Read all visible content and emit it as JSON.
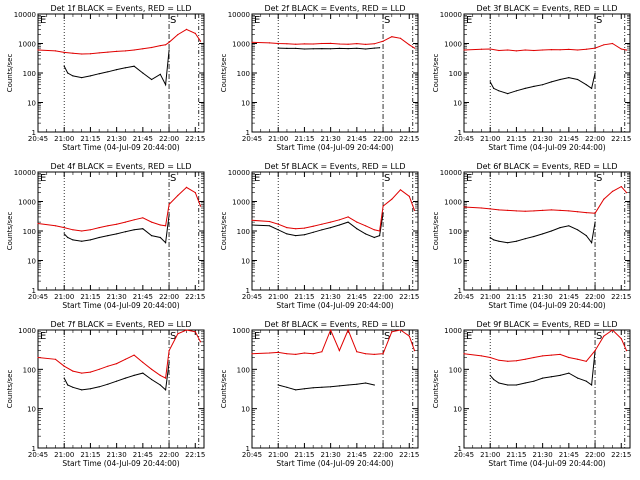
{
  "figure": {
    "xlabel": "Start Time (04-Jul-09 20:44:00)",
    "ylabel": "Counts/sec",
    "x_tick_labels": [
      "20:45",
      "21:00",
      "21:15",
      "21:30",
      "21:45",
      "22:00",
      "22:15"
    ],
    "y_tick_labels": [
      "1",
      "10",
      "100",
      "1000",
      "10000"
    ],
    "marker_labels": [
      "E",
      "S"
    ]
  },
  "colors": {
    "events": "#000000",
    "lld": "#e00000",
    "axis": "#000000"
  },
  "chart_data": [
    {
      "type": "line",
      "title": "Det 1f BLACK = Events, RED = LLD",
      "x_range": [
        "20:45",
        "22:20"
      ],
      "y_scale": "log",
      "ylim": [
        1,
        10000
      ],
      "markers": {
        "E": "20:45",
        "S": "22:00"
      },
      "series": [
        {
          "name": "Events",
          "color": "#000000",
          "x": [
            "21:00",
            "21:02",
            "21:05",
            "21:10",
            "21:15",
            "21:20",
            "21:25",
            "21:30",
            "21:35",
            "21:40",
            "21:45",
            "21:50",
            "21:55",
            "21:58",
            "22:00"
          ],
          "y": [
            170,
            100,
            80,
            70,
            80,
            95,
            110,
            130,
            150,
            170,
            100,
            60,
            90,
            40,
            600
          ]
        },
        {
          "name": "LLD",
          "color": "#e00000",
          "x": [
            "20:45",
            "20:55",
            "21:00",
            "21:05",
            "21:10",
            "21:15",
            "21:20",
            "21:25",
            "21:30",
            "21:35",
            "21:40",
            "21:45",
            "21:50",
            "21:55",
            "21:58",
            "22:00",
            "22:05",
            "22:10",
            "22:15",
            "22:18"
          ],
          "y": [
            600,
            560,
            500,
            470,
            440,
            450,
            480,
            510,
            540,
            560,
            600,
            660,
            730,
            850,
            900,
            1100,
            2000,
            3000,
            2200,
            1200
          ]
        }
      ]
    },
    {
      "type": "line",
      "title": "Det 2f BLACK = Events, RED = LLD",
      "x_range": [
        "20:45",
        "22:20"
      ],
      "y_scale": "log",
      "ylim": [
        1,
        10000
      ],
      "markers": {
        "E": "20:45",
        "S": "22:00"
      },
      "series": [
        {
          "name": "Events",
          "color": "#000000",
          "x": [
            "21:00",
            "21:05",
            "21:10",
            "21:15",
            "21:20",
            "21:25",
            "21:30",
            "21:35",
            "21:40",
            "21:45",
            "21:50",
            "21:55",
            "21:58"
          ],
          "y": [
            700,
            680,
            680,
            650,
            660,
            670,
            660,
            680,
            670,
            690,
            650,
            700,
            720
          ]
        },
        {
          "name": "LLD",
          "color": "#e00000",
          "x": [
            "20:45",
            "20:55",
            "21:00",
            "21:05",
            "21:10",
            "21:15",
            "21:20",
            "21:25",
            "21:30",
            "21:35",
            "21:40",
            "21:45",
            "21:50",
            "21:55",
            "22:00",
            "22:05",
            "22:10",
            "22:15",
            "22:18"
          ],
          "y": [
            1100,
            1050,
            1000,
            980,
            950,
            970,
            960,
            1000,
            1010,
            960,
            950,
            990,
            930,
            980,
            1200,
            1700,
            1500,
            900,
            700
          ]
        }
      ]
    },
    {
      "type": "line",
      "title": "Det 3f BLACK = Events, RED = LLD",
      "x_range": [
        "20:45",
        "22:20"
      ],
      "y_scale": "log",
      "ylim": [
        1,
        10000
      ],
      "markers": {
        "E": "20:45",
        "S": "22:00"
      },
      "series": [
        {
          "name": "Events",
          "color": "#000000",
          "x": [
            "21:00",
            "21:02",
            "21:05",
            "21:10",
            "21:15",
            "21:20",
            "21:25",
            "21:30",
            "21:35",
            "21:40",
            "21:45",
            "21:50",
            "21:55",
            "21:58",
            "22:00"
          ],
          "y": [
            50,
            30,
            25,
            20,
            25,
            30,
            35,
            40,
            50,
            60,
            70,
            60,
            40,
            30,
            100
          ]
        },
        {
          "name": "LLD",
          "color": "#e00000",
          "x": [
            "20:45",
            "20:55",
            "21:00",
            "21:05",
            "21:10",
            "21:15",
            "21:20",
            "21:25",
            "21:30",
            "21:35",
            "21:40",
            "21:45",
            "21:50",
            "21:55",
            "22:00",
            "22:05",
            "22:10",
            "22:15",
            "22:18"
          ],
          "y": [
            600,
            640,
            650,
            580,
            600,
            560,
            600,
            580,
            600,
            620,
            610,
            630,
            600,
            640,
            700,
            900,
            1000,
            650,
            600
          ]
        }
      ]
    },
    {
      "type": "line",
      "title": "Det 4f BLACK = Events, RED = LLD",
      "x_range": [
        "20:45",
        "22:20"
      ],
      "y_scale": "log",
      "ylim": [
        1,
        10000
      ],
      "markers": {
        "E": "20:45",
        "S": "22:00"
      },
      "series": [
        {
          "name": "Events",
          "color": "#000000",
          "x": [
            "21:00",
            "21:02",
            "21:05",
            "21:10",
            "21:15",
            "21:20",
            "21:25",
            "21:30",
            "21:35",
            "21:40",
            "21:45",
            "21:50",
            "21:55",
            "21:58",
            "22:00"
          ],
          "y": [
            80,
            60,
            50,
            45,
            50,
            60,
            70,
            80,
            95,
            110,
            120,
            70,
            60,
            40,
            350
          ]
        },
        {
          "name": "LLD",
          "color": "#e00000",
          "x": [
            "20:45",
            "20:55",
            "21:00",
            "21:05",
            "21:10",
            "21:15",
            "21:20",
            "21:25",
            "21:30",
            "21:35",
            "21:40",
            "21:45",
            "21:50",
            "21:55",
            "21:58",
            "22:00",
            "22:05",
            "22:10",
            "22:15",
            "22:18"
          ],
          "y": [
            180,
            150,
            130,
            110,
            100,
            110,
            130,
            150,
            170,
            200,
            240,
            280,
            200,
            160,
            150,
            800,
            1600,
            3000,
            2000,
            700
          ]
        }
      ]
    },
    {
      "type": "line",
      "title": "Det 5f BLACK = Events, RED = LLD",
      "x_range": [
        "20:45",
        "22:20"
      ],
      "y_scale": "log",
      "ylim": [
        1,
        10000
      ],
      "markers": {
        "E": "20:45",
        "S": "22:00"
      },
      "series": [
        {
          "name": "Events",
          "color": "#000000",
          "x": [
            "20:45",
            "20:55",
            "21:00",
            "21:05",
            "21:10",
            "21:15",
            "21:20",
            "21:25",
            "21:30",
            "21:35",
            "21:40",
            "21:45",
            "21:50",
            "21:55",
            "21:58",
            "22:00"
          ],
          "y": [
            160,
            150,
            110,
            80,
            70,
            75,
            90,
            110,
            130,
            160,
            200,
            120,
            80,
            60,
            70,
            400
          ]
        },
        {
          "name": "LLD",
          "color": "#e00000",
          "x": [
            "20:45",
            "20:55",
            "21:00",
            "21:05",
            "21:10",
            "21:15",
            "21:20",
            "21:25",
            "21:30",
            "21:35",
            "21:40",
            "21:45",
            "21:50",
            "21:55",
            "21:58",
            "22:00",
            "22:05",
            "22:10",
            "22:15",
            "22:18"
          ],
          "y": [
            230,
            210,
            170,
            130,
            120,
            125,
            145,
            170,
            200,
            240,
            300,
            200,
            150,
            110,
            100,
            700,
            1200,
            2500,
            1500,
            500
          ]
        }
      ]
    },
    {
      "type": "line",
      "title": "Det 6f BLACK = Events, RED = LLD",
      "x_range": [
        "20:45",
        "22:20"
      ],
      "y_scale": "log",
      "ylim": [
        1,
        10000
      ],
      "markers": {
        "E": "20:45",
        "S": "22:00"
      },
      "series": [
        {
          "name": "Events",
          "color": "#000000",
          "x": [
            "21:00",
            "21:02",
            "21:05",
            "21:10",
            "21:15",
            "21:20",
            "21:25",
            "21:30",
            "21:35",
            "21:40",
            "21:45",
            "21:50",
            "21:55",
            "21:58",
            "22:00"
          ],
          "y": [
            60,
            50,
            45,
            40,
            45,
            55,
            65,
            80,
            100,
            130,
            150,
            110,
            70,
            40,
            200
          ]
        },
        {
          "name": "LLD",
          "color": "#e00000",
          "x": [
            "20:45",
            "20:55",
            "21:00",
            "21:05",
            "21:10",
            "21:15",
            "21:20",
            "21:25",
            "21:30",
            "21:35",
            "21:40",
            "21:45",
            "21:50",
            "21:55",
            "22:00",
            "22:05",
            "22:10",
            "22:15",
            "22:18"
          ],
          "y": [
            650,
            600,
            560,
            520,
            500,
            480,
            470,
            480,
            500,
            520,
            500,
            480,
            450,
            420,
            400,
            1200,
            2200,
            3200,
            2000
          ]
        }
      ]
    },
    {
      "type": "line",
      "title": "Det 7f BLACK = Events, RED = LLD",
      "x_range": [
        "20:45",
        "22:20"
      ],
      "y_scale": "log",
      "ylim": [
        1,
        1000
      ],
      "markers": {
        "E": "20:45",
        "S": "22:00"
      },
      "series": [
        {
          "name": "Events",
          "color": "#000000",
          "x": [
            "21:00",
            "21:02",
            "21:05",
            "21:10",
            "21:15",
            "21:20",
            "21:25",
            "21:30",
            "21:35",
            "21:40",
            "21:45",
            "21:50",
            "21:55",
            "21:58",
            "22:00"
          ],
          "y": [
            60,
            40,
            35,
            30,
            32,
            36,
            42,
            50,
            60,
            70,
            80,
            55,
            40,
            30,
            150
          ]
        },
        {
          "name": "LLD",
          "color": "#e00000",
          "x": [
            "20:45",
            "20:55",
            "21:00",
            "21:05",
            "21:10",
            "21:15",
            "21:20",
            "21:25",
            "21:30",
            "21:35",
            "21:40",
            "21:45",
            "21:50",
            "21:55",
            "21:58",
            "22:00",
            "22:05",
            "22:10",
            "22:15",
            "22:18"
          ],
          "y": [
            200,
            180,
            120,
            90,
            80,
            85,
            100,
            120,
            140,
            180,
            230,
            150,
            100,
            70,
            60,
            300,
            800,
            1000,
            900,
            500
          ]
        }
      ]
    },
    {
      "type": "line",
      "title": "Det 8f BLACK = Events, RED = LLD",
      "x_range": [
        "20:45",
        "22:20"
      ],
      "y_scale": "log",
      "ylim": [
        1,
        1000
      ],
      "markers": {
        "E": "20:45",
        "S": "22:00"
      },
      "series": [
        {
          "name": "Events",
          "color": "#000000",
          "x": [
            "21:00",
            "21:05",
            "21:10",
            "21:15",
            "21:20",
            "21:25",
            "21:30",
            "21:35",
            "21:40",
            "21:45",
            "21:50",
            "21:55"
          ],
          "y": [
            40,
            35,
            30,
            32,
            34,
            35,
            36,
            38,
            40,
            42,
            45,
            40
          ]
        },
        {
          "name": "LLD",
          "color": "#e00000",
          "x": [
            "20:45",
            "20:55",
            "21:00",
            "21:05",
            "21:10",
            "21:15",
            "21:20",
            "21:25",
            "21:30",
            "21:35",
            "21:40",
            "21:45",
            "21:50",
            "21:55",
            "22:00",
            "22:05",
            "22:10",
            "22:15",
            "22:18"
          ],
          "y": [
            250,
            260,
            270,
            250,
            240,
            260,
            250,
            280,
            1000,
            300,
            1000,
            280,
            250,
            240,
            250,
            900,
            1000,
            700,
            300
          ]
        }
      ]
    },
    {
      "type": "line",
      "title": "Det 9f BLACK = Events, RED = LLD",
      "x_range": [
        "20:45",
        "22:20"
      ],
      "y_scale": "log",
      "ylim": [
        1,
        1000
      ],
      "markers": {
        "E": "20:45",
        "S": "22:00"
      },
      "series": [
        {
          "name": "Events",
          "color": "#000000",
          "x": [
            "21:00",
            "21:02",
            "21:05",
            "21:10",
            "21:15",
            "21:20",
            "21:25",
            "21:30",
            "21:35",
            "21:40",
            "21:45",
            "21:50",
            "21:55",
            "21:58",
            "22:00"
          ],
          "y": [
            70,
            55,
            45,
            40,
            40,
            45,
            50,
            60,
            65,
            70,
            80,
            60,
            50,
            40,
            300
          ]
        },
        {
          "name": "LLD",
          "color": "#e00000",
          "x": [
            "20:45",
            "20:55",
            "21:00",
            "21:05",
            "21:10",
            "21:15",
            "21:20",
            "21:25",
            "21:30",
            "21:35",
            "21:40",
            "21:45",
            "21:50",
            "21:55",
            "22:00",
            "22:05",
            "22:10",
            "22:15",
            "22:18"
          ],
          "y": [
            250,
            220,
            200,
            170,
            160,
            165,
            180,
            200,
            220,
            230,
            240,
            200,
            180,
            160,
            300,
            700,
            1000,
            600,
            300
          ]
        }
      ]
    }
  ]
}
